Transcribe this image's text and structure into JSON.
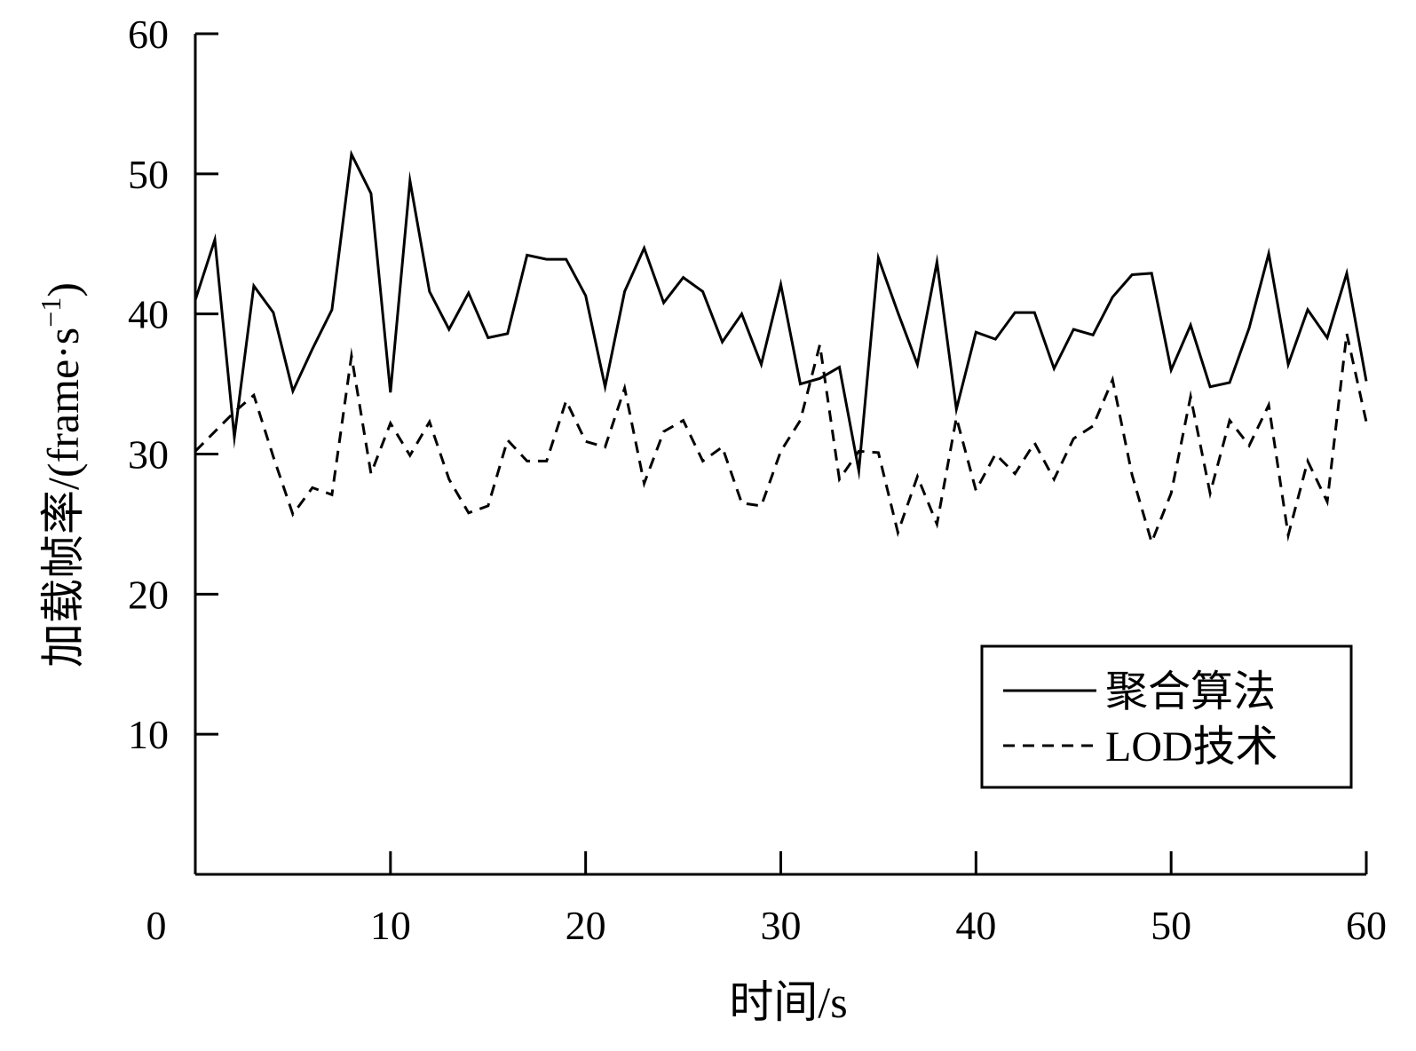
{
  "chart_data": {
    "type": "line",
    "title": "",
    "xlabel": "时间/s",
    "ylabel": "加载帧率/(frame·s",
    "ylabel_superscript": "−1",
    "ylabel_close": ")",
    "xlim": [
      0,
      60
    ],
    "ylim": [
      0,
      60
    ],
    "x_ticks": [
      0,
      10,
      20,
      30,
      40,
      50,
      60
    ],
    "y_ticks": [
      10,
      20,
      30,
      40,
      50,
      60
    ],
    "grid": false,
    "legend_position": "bottom-right",
    "x": [
      0,
      1,
      2,
      3,
      4,
      5,
      6,
      7,
      8,
      9,
      10,
      11,
      12,
      13,
      14,
      15,
      16,
      17,
      18,
      19,
      20,
      21,
      22,
      23,
      24,
      25,
      26,
      27,
      28,
      29,
      30,
      31,
      32,
      33,
      34,
      35,
      36,
      37,
      38,
      39,
      40,
      41,
      42,
      43,
      44,
      45,
      46,
      47,
      48,
      49,
      50,
      51,
      52,
      53,
      54,
      55,
      56,
      57,
      58,
      59,
      60
    ],
    "series": [
      {
        "name": "聚合算法",
        "style": "solid",
        "color": "#000000",
        "values": [
          41,
          45.3,
          31.2,
          42,
          40.1,
          34.5,
          37.5,
          40.3,
          51.4,
          48.6,
          34.4,
          49.5,
          41.6,
          38.9,
          41.5,
          38.3,
          38.6,
          44.2,
          43.9,
          43.9,
          41.3,
          34.8,
          41.6,
          44.7,
          40.8,
          42.6,
          41.6,
          38,
          40,
          36.4,
          42.1,
          35,
          35.4,
          36.2,
          28.8,
          44,
          40.1,
          36.4,
          43.7,
          33.2,
          38.7,
          38.2,
          40.1,
          40.1,
          36.1,
          38.9,
          38.5,
          41.2,
          42.8,
          42.9,
          36,
          39.2,
          34.8,
          35.1,
          39,
          44.3,
          36.4,
          40.3,
          38.3,
          42.9,
          35.2
        ]
      },
      {
        "name": "LOD技术",
        "style": "dashed",
        "color": "#000000",
        "values": [
          30.2,
          31.6,
          33,
          34.2,
          29.8,
          25.7,
          27.6,
          27.1,
          37,
          28.6,
          32.2,
          29.9,
          32.3,
          28.2,
          25.8,
          26.3,
          31,
          29.5,
          29.5,
          33.8,
          30.9,
          30.5,
          34.7,
          27.9,
          31.6,
          32.4,
          29.5,
          30.5,
          26.5,
          26.3,
          30.2,
          32.4,
          37.8,
          28.2,
          30.2,
          30.1,
          24.4,
          28.4,
          25,
          32.6,
          27.4,
          30,
          28.6,
          30.8,
          28.2,
          31.1,
          32,
          35.3,
          28.5,
          23.7,
          27.2,
          34.1,
          27.2,
          32.4,
          30.6,
          33.5,
          24.2,
          29.5,
          26.6,
          38.6,
          32.3
        ]
      }
    ]
  }
}
